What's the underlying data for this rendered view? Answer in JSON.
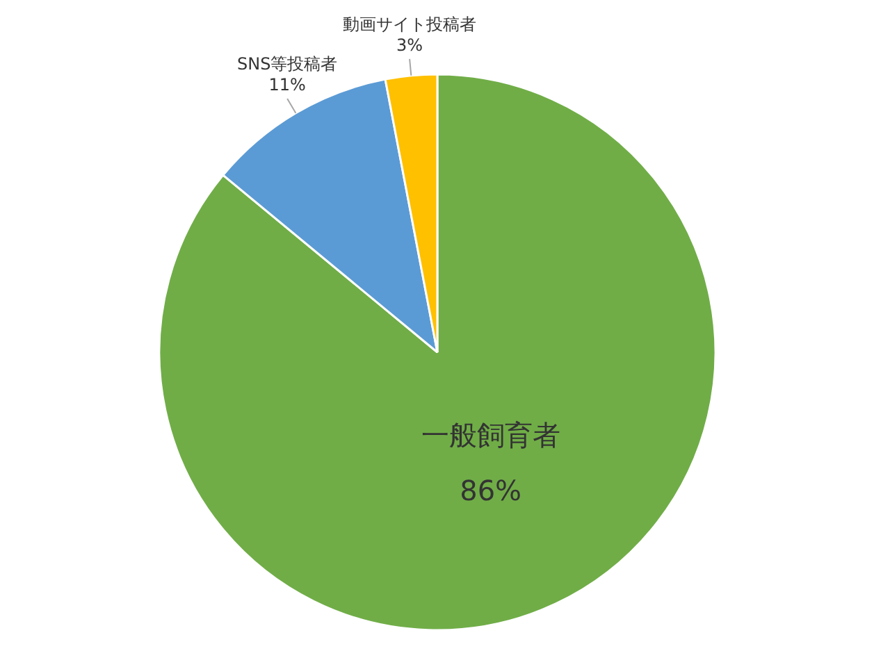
{
  "chart_data": {
    "type": "pie",
    "categories": [
      "一般飼育者",
      "SNS等投稿者",
      "動画サイト投稿者"
    ],
    "values": [
      86,
      11,
      3
    ],
    "colors": [
      "#70ad47",
      "#5b9bd5",
      "#ffc000"
    ],
    "value_labels": [
      "86%",
      "11%",
      "3%"
    ]
  }
}
